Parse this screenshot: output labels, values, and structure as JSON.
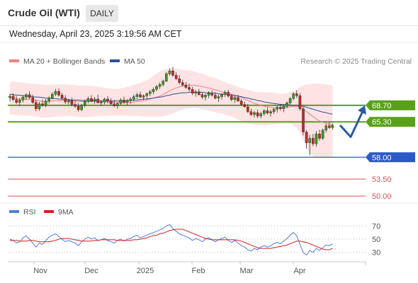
{
  "header": {
    "title": "Crude Oil (WTI)",
    "timeframe": "DAILY",
    "datetime": "Wednesday, April 23, 2025 3:19:56 AM CET"
  },
  "chart_data": [
    {
      "type": "line",
      "panel": "price",
      "instrument": "Crude Oil (WTI)",
      "legend": [
        {
          "label": "MA 20 + Bollinger Bands",
          "color": "#f08080"
        },
        {
          "label": "MA 50",
          "color": "#2f4f8f"
        }
      ],
      "legend_position": "top-left",
      "credit": "Research © 2025 Trading Central",
      "x_labels": [
        "Nov",
        "Dec",
        "2025",
        "Feb",
        "Mar",
        "Apr"
      ],
      "ylim": [
        49.0,
        77.0
      ],
      "price_levels": [
        {
          "value": 68.7,
          "label": "68.70",
          "style": "resistance",
          "color": "#5aa01c"
        },
        {
          "value": 65.3,
          "label": "65.30",
          "style": "resistance",
          "color": "#5aa01c"
        },
        {
          "value": 58.0,
          "label": "58.00",
          "style": "support",
          "color": "#2c58c8"
        },
        {
          "value": 53.5,
          "label": "53.50",
          "style": "target",
          "color": "#e05050"
        },
        {
          "value": 50.0,
          "label": "50.00",
          "style": "target",
          "color": "#e05050"
        }
      ],
      "scenario_arrow": {
        "color": "#2a5aa0",
        "path": [
          64.6,
          62.2,
          67.8
        ]
      },
      "candles": [
        [
          70.3,
          71.1,
          69.5,
          70.6
        ],
        [
          70.6,
          71.2,
          69.6,
          69.9
        ],
        [
          69.9,
          70.6,
          69.0,
          69.3
        ],
        [
          69.3,
          70.2,
          68.6,
          69.8
        ],
        [
          69.8,
          70.8,
          69.3,
          70.4
        ],
        [
          70.4,
          71.2,
          69.8,
          70.9
        ],
        [
          70.9,
          71.6,
          70.0,
          70.3
        ],
        [
          70.3,
          70.9,
          69.0,
          69.3
        ],
        [
          69.3,
          69.9,
          67.5,
          68.0
        ],
        [
          68.0,
          69.4,
          67.6,
          69.0
        ],
        [
          69.0,
          69.9,
          68.4,
          68.8
        ],
        [
          68.8,
          70.0,
          68.3,
          69.6
        ],
        [
          69.6,
          70.6,
          69.1,
          70.2
        ],
        [
          70.2,
          71.4,
          69.9,
          71.0
        ],
        [
          71.0,
          72.1,
          70.6,
          71.6
        ],
        [
          71.6,
          72.2,
          70.5,
          70.8
        ],
        [
          70.8,
          71.3,
          69.8,
          70.2
        ],
        [
          70.2,
          70.8,
          69.0,
          69.4
        ],
        [
          69.4,
          70.1,
          68.9,
          69.7
        ],
        [
          69.7,
          70.3,
          68.5,
          68.9
        ],
        [
          68.9,
          69.6,
          68.2,
          68.5
        ],
        [
          68.5,
          69.2,
          67.4,
          67.8
        ],
        [
          67.8,
          69.0,
          67.5,
          68.7
        ],
        [
          68.7,
          69.9,
          68.3,
          69.5
        ],
        [
          69.5,
          70.5,
          69.1,
          70.1
        ],
        [
          70.1,
          70.8,
          69.3,
          69.6
        ],
        [
          69.6,
          70.4,
          69.0,
          70.0
        ],
        [
          70.0,
          70.9,
          69.4,
          69.2
        ],
        [
          69.2,
          69.8,
          68.6,
          69.4
        ],
        [
          69.4,
          70.3,
          68.9,
          70.0
        ],
        [
          70.0,
          70.6,
          69.1,
          69.6
        ],
        [
          69.6,
          70.2,
          68.8,
          69.0
        ],
        [
          69.0,
          69.8,
          68.3,
          68.6
        ],
        [
          68.6,
          69.3,
          68.0,
          69.1
        ],
        [
          69.1,
          70.2,
          68.8,
          69.8
        ],
        [
          69.8,
          70.5,
          69.0,
          69.3
        ],
        [
          69.3,
          70.0,
          68.7,
          69.7
        ],
        [
          69.7,
          70.4,
          69.0,
          70.0
        ],
        [
          70.0,
          70.9,
          69.5,
          70.5
        ],
        [
          70.5,
          71.3,
          70.0,
          70.9
        ],
        [
          70.9,
          71.5,
          70.2,
          70.4
        ],
        [
          70.4,
          71.0,
          69.8,
          70.7
        ],
        [
          70.7,
          71.4,
          70.1,
          71.1
        ],
        [
          71.1,
          71.9,
          70.6,
          71.5
        ],
        [
          71.5,
          72.4,
          71.0,
          72.0
        ],
        [
          72.0,
          72.9,
          71.6,
          72.6
        ],
        [
          72.6,
          73.4,
          72.1,
          73.0
        ],
        [
          73.0,
          74.0,
          72.6,
          73.7
        ],
        [
          73.7,
          75.6,
          73.5,
          75.2
        ],
        [
          75.2,
          76.3,
          74.8,
          75.8
        ],
        [
          75.8,
          76.6,
          74.6,
          74.9
        ],
        [
          74.9,
          75.5,
          73.9,
          74.2
        ],
        [
          74.2,
          74.9,
          73.0,
          73.4
        ],
        [
          73.4,
          74.0,
          72.6,
          72.9
        ],
        [
          72.9,
          73.5,
          72.1,
          72.4
        ],
        [
          72.4,
          73.2,
          71.6,
          72.0
        ],
        [
          72.0,
          72.5,
          70.8,
          71.2
        ],
        [
          71.2,
          71.9,
          70.5,
          71.5
        ],
        [
          71.5,
          72.1,
          70.7,
          70.9
        ],
        [
          70.9,
          71.3,
          70.0,
          70.4
        ],
        [
          70.4,
          71.1,
          69.7,
          70.8
        ],
        [
          70.8,
          71.6,
          70.2,
          71.2
        ],
        [
          71.2,
          71.8,
          70.5,
          70.8
        ],
        [
          70.8,
          71.4,
          69.9,
          70.2
        ],
        [
          70.2,
          70.9,
          69.4,
          70.5
        ],
        [
          70.5,
          71.2,
          69.9,
          71.0
        ],
        [
          71.0,
          71.8,
          70.4,
          71.4
        ],
        [
          71.4,
          71.9,
          70.3,
          70.6
        ],
        [
          70.6,
          71.1,
          69.5,
          69.9
        ],
        [
          69.9,
          70.6,
          69.2,
          70.3
        ],
        [
          70.3,
          70.9,
          69.4,
          69.6
        ],
        [
          69.6,
          70.0,
          68.6,
          68.9
        ],
        [
          68.9,
          69.5,
          68.2,
          68.4
        ],
        [
          68.4,
          69.0,
          67.1,
          67.4
        ],
        [
          67.4,
          68.0,
          66.5,
          66.8
        ],
        [
          66.8,
          67.6,
          66.2,
          67.2
        ],
        [
          67.2,
          67.8,
          66.1,
          66.5
        ],
        [
          66.5,
          67.4,
          66.0,
          67.0
        ],
        [
          67.0,
          67.9,
          66.5,
          67.6
        ],
        [
          67.6,
          68.3,
          66.8,
          67.1
        ],
        [
          67.1,
          67.8,
          66.4,
          67.4
        ],
        [
          67.4,
          68.2,
          66.9,
          67.9
        ],
        [
          67.9,
          68.6,
          67.2,
          68.3
        ],
        [
          68.3,
          69.0,
          67.6,
          68.0
        ],
        [
          68.0,
          68.7,
          67.3,
          68.5
        ],
        [
          68.5,
          69.5,
          68.1,
          69.2
        ],
        [
          69.2,
          70.4,
          68.9,
          70.1
        ],
        [
          70.1,
          71.4,
          69.8,
          71.1
        ],
        [
          71.1,
          71.8,
          70.2,
          70.7
        ],
        [
          70.7,
          71.2,
          67.6,
          68.0
        ],
        [
          68.0,
          68.4,
          62.5,
          63.2
        ],
        [
          63.2,
          63.6,
          59.8,
          61.0
        ],
        [
          61.0,
          62.6,
          58.4,
          61.9
        ],
        [
          61.9,
          62.8,
          60.3,
          60.8
        ],
        [
          60.8,
          63.4,
          60.2,
          62.8
        ],
        [
          62.8,
          63.7,
          61.4,
          61.9
        ],
        [
          61.9,
          63.9,
          61.6,
          63.6
        ],
        [
          63.6,
          64.9,
          63.1,
          64.5
        ],
        [
          64.5,
          65.3,
          63.9,
          64.1
        ],
        [
          64.1,
          65.0,
          63.7,
          64.6
        ]
      ],
      "ma20": [
        70.2,
        70.2,
        70.1,
        70.0,
        70.0,
        70.0,
        69.9,
        69.8,
        69.7,
        69.6,
        69.5,
        69.5,
        69.5,
        69.6,
        69.7,
        69.7,
        69.7,
        69.7,
        69.7,
        69.7,
        69.6,
        69.5,
        69.5,
        69.5,
        69.5,
        69.5,
        69.5,
        69.5,
        69.4,
        69.4,
        69.4,
        69.4,
        69.3,
        69.3,
        69.3,
        69.3,
        69.3,
        69.3,
        69.4,
        69.5,
        69.6,
        69.7,
        69.8,
        70.0,
        70.2,
        70.4,
        70.6,
        70.9,
        71.3,
        71.7,
        72.0,
        72.3,
        72.5,
        72.7,
        72.8,
        72.8,
        72.8,
        72.8,
        72.7,
        72.6,
        72.4,
        72.3,
        72.1,
        71.9,
        71.7,
        71.5,
        71.3,
        71.1,
        71.0,
        70.8,
        70.6,
        70.3,
        70.0,
        69.7,
        69.4,
        69.1,
        68.9,
        68.7,
        68.5,
        68.4,
        68.3,
        68.2,
        68.2,
        68.2,
        68.2,
        68.3,
        68.4,
        68.5,
        68.5,
        68.3,
        67.9,
        67.4,
        66.9,
        66.4,
        65.9,
        65.5,
        65.2,
        65.0,
        64.8,
        64.6
      ],
      "ma50": [
        71.0,
        70.9,
        70.8,
        70.8,
        70.7,
        70.6,
        70.6,
        70.5,
        70.4,
        70.4,
        70.3,
        70.2,
        70.2,
        70.1,
        70.1,
        70.0,
        70.0,
        69.9,
        69.9,
        69.8,
        69.8,
        69.8,
        69.7,
        69.7,
        69.7,
        69.6,
        69.6,
        69.6,
        69.6,
        69.6,
        69.6,
        69.6,
        69.6,
        69.6,
        69.6,
        69.6,
        69.7,
        69.7,
        69.8,
        69.8,
        69.9,
        70.0,
        70.0,
        70.1,
        70.2,
        70.3,
        70.4,
        70.5,
        70.7,
        70.8,
        71.0,
        71.1,
        71.2,
        71.3,
        71.3,
        71.4,
        71.4,
        71.4,
        71.4,
        71.4,
        71.3,
        71.3,
        71.2,
        71.2,
        71.1,
        71.0,
        71.0,
        70.9,
        70.8,
        70.7,
        70.6,
        70.5,
        70.3,
        70.2,
        70.0,
        69.9,
        69.7,
        69.6,
        69.4,
        69.3,
        69.2,
        69.1,
        69.0,
        68.9,
        68.9,
        68.8,
        68.8,
        68.7,
        68.7,
        68.6,
        68.5,
        68.3,
        68.1,
        67.9,
        67.7,
        67.5,
        67.3,
        67.2,
        67.0,
        66.9
      ],
      "bb_upper": [
        73.6,
        73.6,
        73.5,
        73.4,
        73.4,
        73.3,
        73.2,
        73.1,
        73.1,
        73.0,
        73.0,
        72.9,
        72.9,
        72.9,
        73.0,
        73.0,
        73.0,
        73.0,
        73.0,
        72.9,
        72.9,
        72.8,
        72.8,
        72.8,
        72.7,
        72.7,
        72.6,
        72.5,
        72.4,
        72.3,
        72.2,
        72.1,
        72.1,
        72.1,
        72.2,
        72.3,
        72.5,
        72.7,
        72.9,
        73.1,
        73.3,
        73.6,
        73.9,
        74.3,
        74.8,
        75.3,
        75.7,
        76.0,
        76.2,
        76.3,
        76.3,
        76.3,
        76.2,
        76.1,
        76.0,
        75.9,
        75.8,
        75.6,
        75.4,
        75.2,
        75.0,
        74.7,
        74.5,
        74.3,
        74.0,
        73.8,
        73.5,
        73.2,
        73.0,
        72.8,
        72.5,
        72.3,
        72.1,
        71.9,
        71.7,
        71.5,
        71.4,
        71.4,
        71.4,
        71.4,
        71.4,
        71.3,
        71.2,
        71.1,
        71.1,
        71.2,
        71.4,
        71.6,
        72.0,
        72.5,
        72.8,
        73.0,
        73.1,
        73.2,
        73.2,
        73.2,
        73.1,
        73.0,
        72.9,
        72.8
      ],
      "bb_lower": [
        66.8,
        66.8,
        66.7,
        66.7,
        66.6,
        66.6,
        66.6,
        66.5,
        66.4,
        66.3,
        66.2,
        66.2,
        66.2,
        66.3,
        66.4,
        66.4,
        66.4,
        66.5,
        66.5,
        66.5,
        66.4,
        66.3,
        66.3,
        66.3,
        66.3,
        66.4,
        66.4,
        66.5,
        66.5,
        66.5,
        66.6,
        66.6,
        66.6,
        66.6,
        66.6,
        66.6,
        66.6,
        66.5,
        66.5,
        66.5,
        66.5,
        66.4,
        66.4,
        66.4,
        66.4,
        66.4,
        66.4,
        66.5,
        66.6,
        66.8,
        67.0,
        67.3,
        67.6,
        67.8,
        68.0,
        68.1,
        68.1,
        68.1,
        68.0,
        67.9,
        67.8,
        67.6,
        67.4,
        67.3,
        67.1,
        67.0,
        66.8,
        66.6,
        66.4,
        66.1,
        65.8,
        65.5,
        65.2,
        65.0,
        64.8,
        64.7,
        64.6,
        64.6,
        64.6,
        64.6,
        64.7,
        64.8,
        64.8,
        64.9,
        65.0,
        65.1,
        65.0,
        64.6,
        64.0,
        63.0,
        61.5,
        60.0,
        58.8,
        58.2,
        58.0,
        58.0,
        58.0,
        58.0,
        58.0,
        58.0
      ]
    },
    {
      "type": "line",
      "panel": "rsi",
      "legend": [
        {
          "label": "RSI",
          "color": "#4f7fd8"
        },
        {
          "label": "9MA",
          "color": "#d42020"
        }
      ],
      "legend_position": "top-left",
      "ylim": [
        20,
        80
      ],
      "y_ticks": [
        70,
        50,
        30
      ],
      "rsi": [
        50,
        48,
        44,
        46,
        52,
        55,
        50,
        44,
        38,
        44,
        42,
        48,
        53,
        56,
        58,
        54,
        50,
        46,
        48,
        46,
        44,
        40,
        46,
        50,
        53,
        50,
        52,
        48,
        49,
        51,
        48,
        46,
        44,
        48,
        50,
        47,
        50,
        51,
        54,
        56,
        52,
        54,
        56,
        58,
        60,
        62,
        64,
        66,
        70,
        72,
        66,
        62,
        58,
        56,
        54,
        52,
        48,
        51,
        49,
        46,
        50,
        52,
        49,
        46,
        49,
        51,
        53,
        48,
        45,
        48,
        44,
        40,
        38,
        34,
        32,
        36,
        34,
        38,
        40,
        38,
        40,
        43,
        45,
        43,
        47,
        51,
        56,
        60,
        55,
        42,
        30,
        26,
        33,
        30,
        36,
        33,
        37,
        41,
        40,
        43
      ],
      "ma9": [
        48,
        48,
        48,
        47,
        47,
        47,
        48,
        48,
        47,
        46,
        46,
        46,
        46,
        47,
        48,
        50,
        51,
        51,
        51,
        50,
        49,
        48,
        47,
        47,
        47,
        47,
        48,
        48,
        49,
        49,
        49,
        49,
        49,
        48,
        48,
        48,
        48,
        48,
        49,
        49,
        50,
        51,
        52,
        54,
        55,
        56,
        58,
        59,
        61,
        63,
        64,
        65,
        65,
        65,
        63,
        61,
        59,
        57,
        55,
        53,
        51,
        50,
        49,
        49,
        49,
        49,
        49,
        49,
        49,
        49,
        48,
        47,
        45,
        43,
        41,
        39,
        37,
        36,
        36,
        36,
        36,
        37,
        38,
        39,
        40,
        41,
        43,
        45,
        47,
        47,
        46,
        45,
        43,
        41,
        39,
        37,
        35,
        34,
        34,
        36
      ]
    }
  ]
}
